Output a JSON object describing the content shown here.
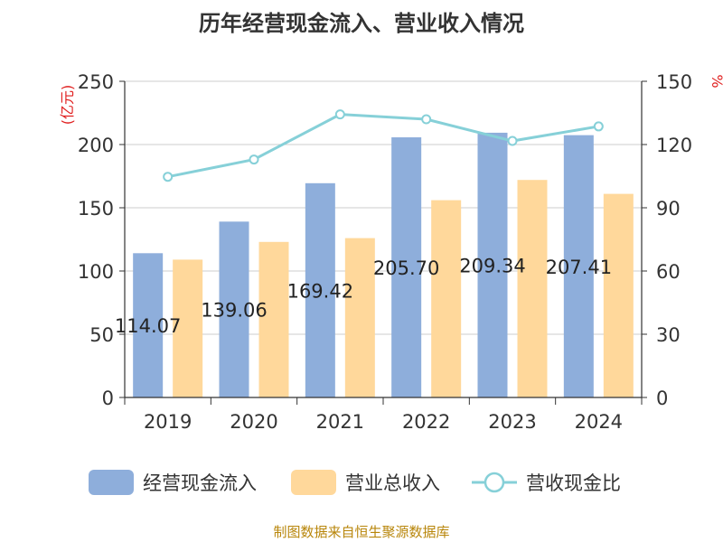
{
  "title": "历年经营现金流入、营业收入情况",
  "footer": "制图数据来自恒生聚源数据库",
  "chart_data": {
    "type": "bar",
    "title": "历年经营现金流入、营业收入情况",
    "categories": [
      "2019",
      "2020",
      "2021",
      "2022",
      "2023",
      "2024"
    ],
    "left_axis": {
      "unit": "(亿元)",
      "ylim": [
        0,
        250
      ],
      "ticks": [
        "0",
        "50",
        "100",
        "150",
        "200",
        "250"
      ]
    },
    "right_axis": {
      "unit": "%",
      "ylim": [
        0,
        150
      ],
      "ticks": [
        "0",
        "30",
        "60",
        "90",
        "120",
        "150"
      ]
    },
    "series": [
      {
        "name": "经营现金流入",
        "kind": "bar",
        "axis": "left",
        "color": "#8eaedb",
        "values": [
          114.07,
          139.06,
          169.42,
          205.7,
          209.34,
          207.41
        ],
        "data_labels": [
          "114.07",
          "139.06",
          "169.42",
          "205.70",
          "209.34",
          "207.41"
        ]
      },
      {
        "name": "营业总收入",
        "kind": "bar",
        "axis": "left",
        "color": "#ffd89b",
        "values": [
          109,
          123,
          126,
          156,
          172,
          161
        ]
      },
      {
        "name": "营收现金比",
        "kind": "line",
        "axis": "right",
        "color": "#86d0d8",
        "values": [
          104.7,
          112.9,
          134.3,
          132.0,
          121.7,
          128.6
        ]
      }
    ],
    "grid": true,
    "legend_position": "bottom"
  }
}
